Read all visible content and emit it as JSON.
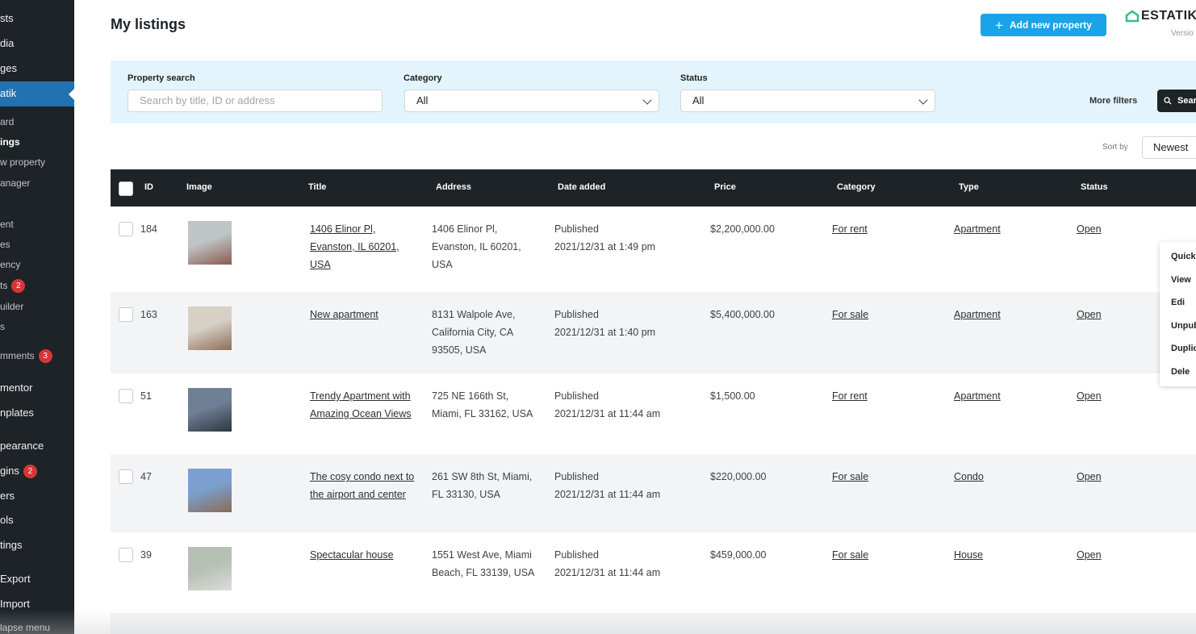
{
  "sidebar": {
    "items": [
      {
        "label": "sts"
      },
      {
        "label": "dia"
      },
      {
        "label": "ges"
      },
      {
        "label": "atik"
      },
      {
        "label": "ard"
      },
      {
        "label": "ings"
      },
      {
        "label": "w property"
      },
      {
        "label": "anager"
      },
      {
        "label": "ent"
      },
      {
        "label": "es"
      },
      {
        "label": "ency"
      },
      {
        "label": "ts",
        "badge": "2"
      },
      {
        "label": "uilder"
      },
      {
        "label": "s"
      },
      {
        "label": "mments",
        "badge": "3"
      },
      {
        "label": "mentor"
      },
      {
        "label": "nplates"
      },
      {
        "label": "pearance"
      },
      {
        "label": "gins",
        "badge": "2"
      },
      {
        "label": "ers"
      },
      {
        "label": "ols"
      },
      {
        "label": "tings"
      },
      {
        "label": "Export"
      },
      {
        "label": "Import"
      },
      {
        "label": "lapse menu"
      }
    ]
  },
  "header": {
    "title": "My listings",
    "add_button": "Add new property",
    "logo": "ESTATIK",
    "version": "Versio"
  },
  "filters": {
    "search_label": "Property search",
    "search_placeholder": "Search by title, ID or address",
    "category_label": "Category",
    "category_value": "All",
    "status_label": "Status",
    "status_value": "All",
    "more_filters": "More filters",
    "search_button": "Sear"
  },
  "sort": {
    "label": "Sort by",
    "value": "Newest"
  },
  "table": {
    "columns": [
      "ID",
      "Image",
      "Title",
      "Address",
      "Date added",
      "Price",
      "Category",
      "Type",
      "Status"
    ],
    "rows": [
      {
        "id": "184",
        "title": "1406 Elinor Pl, Evanston, IL 60201, USA",
        "address": "1406 Elinor Pl, Evanston, IL 60201, USA",
        "state": "Published",
        "date": "2021/12/31 at 1:49 pm",
        "price": "$2,200,000.00",
        "category": "For rent",
        "type": "Apartment",
        "status": "Open"
      },
      {
        "id": "163",
        "title": "New apartment",
        "address": "8131 Walpole Ave, California City, CA 93505, USA",
        "state": "Published",
        "date": "2021/12/31 at 1:40 pm",
        "price": "$5,400,000.00",
        "category": "For sale",
        "type": "Apartment",
        "status": "Open"
      },
      {
        "id": "51",
        "title": "Trendy Apartment with Amazing Ocean Views",
        "address": "725 NE 166th St, Miami, FL 33162, USA",
        "state": "Published",
        "date": "2021/12/31 at 11:44 am",
        "price": "$1,500.00",
        "category": "For rent",
        "type": "Apartment",
        "status": "Open"
      },
      {
        "id": "47",
        "title": "The cosy condo next to the airport and center",
        "address": "261 SW 8th St, Miami, FL 33130, USA",
        "state": "Published",
        "date": "2021/12/31 at 11:44 am",
        "price": "$220,000.00",
        "category": "For sale",
        "type": "Condo",
        "status": "Open"
      },
      {
        "id": "39",
        "title": "Spectacular house",
        "address": "1551 West Ave, Miami Beach, FL 33139, USA",
        "state": "Published",
        "date": "2021/12/31 at 11:44 am",
        "price": "$459,000.00",
        "category": "For sale",
        "type": "House",
        "status": "Open"
      }
    ]
  },
  "context_menu": [
    "Quick",
    "View",
    "Edi",
    "Unpub",
    "Duplic",
    "Dele"
  ]
}
